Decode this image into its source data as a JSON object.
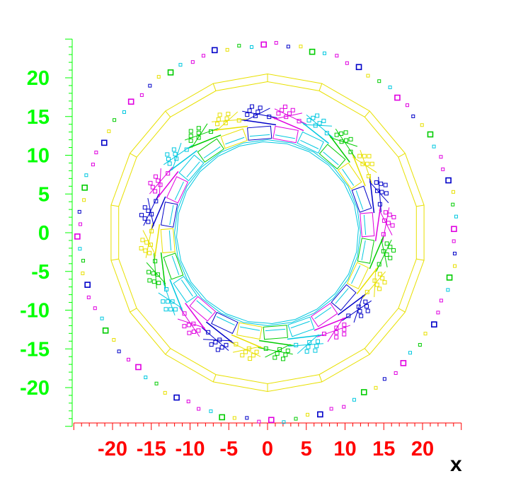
{
  "chart_data": {
    "type": "diagram",
    "xlabel": "x",
    "ylabel": "",
    "xlim": [
      -25,
      25
    ],
    "ylim": [
      -25,
      25
    ],
    "x_ticks": [
      "-20",
      "-15",
      "-10",
      "-5",
      "0",
      "5",
      "10",
      "15",
      "20"
    ],
    "y_ticks": [
      "20",
      "15",
      "10",
      "5",
      "0",
      "-5",
      "-10",
      "-15",
      "-20"
    ],
    "x_tick_values": [
      -20,
      -15,
      -10,
      -5,
      0,
      5,
      10,
      15,
      20
    ],
    "y_tick_values": [
      20,
      15,
      10,
      5,
      0,
      -5,
      -10,
      -15,
      -20
    ],
    "rings": [
      {
        "name": "inner-cylinder",
        "radius": 12,
        "sides": 24,
        "color": "#00c8e0"
      },
      {
        "name": "middle-outer-ring-inner",
        "radius": 19.5,
        "sides": 18,
        "color": "#e8e000"
      },
      {
        "name": "middle-outer-ring-outer",
        "radius": 20.5,
        "sides": 18,
        "color": "#e8e000"
      }
    ],
    "module_ring_radius": 14.3,
    "module_count": 24,
    "outer_hit_ring_radius": 24.3,
    "outer_hit_count": 96,
    "colors": {
      "x_axis": "#ff0000",
      "y_axis": "#00ff00",
      "yellow": "#e8e000",
      "green": "#00cc00",
      "magenta": "#e000e0",
      "blue": "#0000c8",
      "cyan": "#00c8e0"
    }
  }
}
